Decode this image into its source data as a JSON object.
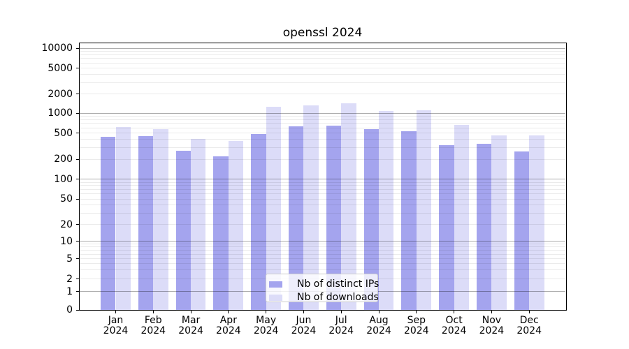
{
  "title": "openssl 2024",
  "legend": {
    "position": "lower center",
    "items": [
      {
        "label": "Nb of distinct IPs",
        "color": "#a4a4ee"
      },
      {
        "label": "Nb of downloads",
        "color": "#dcdcf8"
      }
    ]
  },
  "chart_data": {
    "type": "bar",
    "title": "openssl 2024",
    "categories": [
      "Jan",
      "Feb",
      "Mar",
      "Apr",
      "May",
      "Jun",
      "Jul",
      "Aug",
      "Sep",
      "Oct",
      "Nov",
      "Dec"
    ],
    "category_year": "2024",
    "series": [
      {
        "name": "Nb of distinct IPs",
        "color": "#a4a4ee",
        "values": [
          435,
          448,
          270,
          221,
          486,
          630,
          648,
          568,
          530,
          327,
          341,
          261
        ]
      },
      {
        "name": "Nb of downloads",
        "color": "#dcdcf8",
        "values": [
          620,
          573,
          407,
          378,
          1258,
          1330,
          1430,
          1090,
          1118,
          661,
          456,
          463
        ]
      }
    ],
    "y_axis": {
      "scale": "symlog",
      "tick_labels": [
        "10000",
        "5000",
        "2000",
        "1000",
        "500",
        "200",
        "100",
        "50",
        "20",
        "10",
        "5",
        "2",
        "1",
        "0"
      ],
      "tick_values": [
        10000,
        5000,
        2000,
        1000,
        500,
        200,
        100,
        50,
        20,
        10,
        5,
        2,
        1,
        0
      ],
      "major_grid_values": [
        1,
        10,
        100,
        1000,
        10000
      ],
      "minor_grid_decades": [
        1,
        10,
        100,
        1000
      ],
      "grid": true,
      "ylim": [
        0,
        12000
      ]
    },
    "x_axis": {
      "tick_label_line2": "2024"
    },
    "legend_position": "lower center"
  }
}
